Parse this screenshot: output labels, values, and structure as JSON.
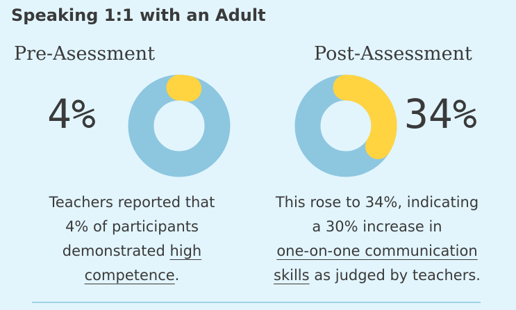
{
  "title": "Speaking 1:1 with an Adult",
  "colors": {
    "background": "#e2f5fd",
    "donut_base": "#8dc6df",
    "donut_highlight": "#ffd440",
    "text": "#3a3a3a"
  },
  "pre": {
    "heading": "Pre-Asessment",
    "percent_label": "4%",
    "caption": {
      "line1": "Teachers reported that",
      "line2": "4% of participants",
      "line3_prefix": "demonstrated ",
      "line3_link": "high",
      "line4_link": "competence",
      "line4_suffix": "."
    }
  },
  "post": {
    "heading": "Post-Assessment",
    "percent_label": "34%",
    "caption": {
      "line1": "This rose to 34%, indicating",
      "line2": "a 30% increase in",
      "line3_link": "one-on-one communication",
      "line4_link": "skills",
      "line4_suffix": " as judged by teachers."
    }
  },
  "chart_data": [
    {
      "type": "pie",
      "title": "Pre-Asessment",
      "values": [
        4,
        96
      ],
      "value_label": "4%"
    },
    {
      "type": "pie",
      "title": "Post-Assessment",
      "values": [
        34,
        66
      ],
      "value_label": "34%"
    }
  ]
}
